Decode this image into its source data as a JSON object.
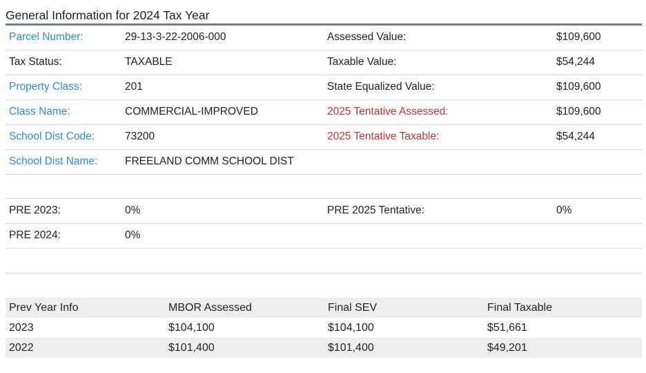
{
  "section_title": "General Information for 2024 Tax Year",
  "info_rows": [
    {
      "label1": "Parcel Number:",
      "value1": "29-13-3-22-2006-000",
      "label2": "Assessed Value:",
      "value2": "$109,600"
    },
    {
      "label1": "Tax Status:",
      "value1": "TAXABLE",
      "label2": "Taxable Value:",
      "value2": "$54,244"
    },
    {
      "label1": "Property Class:",
      "value1": "201",
      "label2": "State Equalized Value:",
      "value2": "$109,600"
    },
    {
      "label1": "Class Name:",
      "value1": "COMMERCIAL-IMPROVED",
      "label2": "2025 Tentative Assessed:",
      "value2": "$109,600"
    },
    {
      "label1": "School Dist Code:",
      "value1": "73200",
      "label2": "2025 Tentative Taxable:",
      "value2": "$54,244"
    },
    {
      "label1": "School Dist Name:",
      "value1": "FREELAND COMM SCHOOL DIST",
      "label2": "",
      "value2": ""
    }
  ],
  "pre_rows": [
    {
      "label1": "PRE 2023:",
      "value1": "0%",
      "label2": "PRE 2025 Tentative:",
      "value2": "0%"
    },
    {
      "label1": "PRE 2024:",
      "value1": "0%",
      "label2": "",
      "value2": ""
    }
  ],
  "prev_year": {
    "headers": [
      "Prev Year Info",
      "MBOR Assessed",
      "Final SEV",
      "Final Taxable"
    ],
    "rows": [
      [
        "2023",
        "$104,100",
        "$104,100",
        "$51,661"
      ],
      [
        "2022",
        "$101,400",
        "$101,400",
        "$49,201"
      ]
    ]
  },
  "colors": {
    "link_blue": "#2d8ed6",
    "tentative_red": "#cc3333",
    "title_rule": "#6a8199",
    "row_shade": "#eeeeee"
  }
}
